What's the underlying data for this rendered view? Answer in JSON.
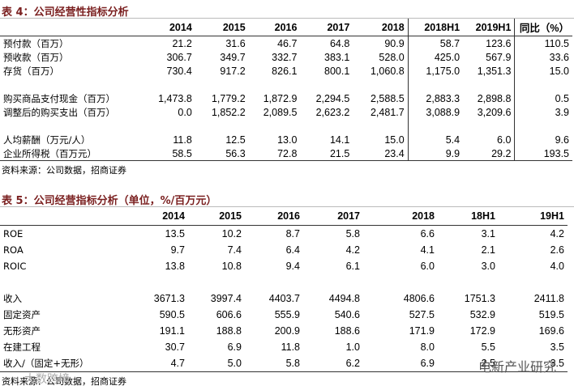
{
  "table4": {
    "title": "表 4：公司经营性指标分析",
    "columns": [
      "2014",
      "2015",
      "2016",
      "2017",
      "2018",
      "2018H1",
      "2019H1",
      "同比（%）"
    ],
    "groups": [
      [
        {
          "label": "预付款（百万）",
          "values": [
            "21.2",
            "31.6",
            "46.7",
            "64.8",
            "90.9",
            "58.7",
            "123.6",
            "110.5"
          ]
        },
        {
          "label": "预收款（百万）",
          "values": [
            "306.7",
            "349.7",
            "332.7",
            "383.1",
            "528.0",
            "425.0",
            "567.9",
            "33.6"
          ]
        },
        {
          "label": "存货（百万）",
          "values": [
            "730.4",
            "917.2",
            "826.1",
            "800.1",
            "1,060.8",
            "1,175.0",
            "1,351.3",
            "15.0"
          ]
        }
      ],
      [
        {
          "label": "购买商品支付现金（百万）",
          "values": [
            "1,473.8",
            "1,779.2",
            "1,872.9",
            "2,294.5",
            "2,588.5",
            "2,883.3",
            "2,898.8",
            "0.5"
          ]
        },
        {
          "label": "调整后的购买支出（百万）",
          "values": [
            "0.0",
            "1,852.2",
            "2,089.5",
            "2,623.2",
            "2,481.7",
            "3,088.9",
            "3,209.6",
            "3.9"
          ]
        }
      ],
      [
        {
          "label": "人均薪酬（万元/人）",
          "values": [
            "11.8",
            "12.5",
            "13.0",
            "14.1",
            "15.0",
            "5.4",
            "6.0",
            "9.6"
          ]
        },
        {
          "label": "企业所得税（百万元）",
          "values": [
            "58.5",
            "56.3",
            "72.8",
            "21.5",
            "23.4",
            "9.9",
            "29.2",
            "193.5"
          ]
        }
      ]
    ],
    "source": "资料来源：公司数据，招商证券"
  },
  "table5": {
    "title": "表 5：公司经营指标分析（单位，%/百万元）",
    "columns": [
      "2014",
      "2015",
      "2016",
      "2017",
      "2018",
      "18H1",
      "19H1"
    ],
    "groups": [
      [
        {
          "label": "ROE",
          "values": [
            "13.5",
            "10.2",
            "8.7",
            "5.8",
            "6.6",
            "3.1",
            "4.2"
          ]
        },
        {
          "label": "ROA",
          "values": [
            "9.7",
            "7.4",
            "6.4",
            "4.2",
            "4.1",
            "2.1",
            "2.6"
          ]
        },
        {
          "label": "ROIC",
          "values": [
            "13.8",
            "10.8",
            "9.4",
            "6.1",
            "6.0",
            "3.0",
            "4.0"
          ]
        }
      ],
      [
        {
          "label": "收入",
          "values": [
            "3671.3",
            "3997.4",
            "4403.7",
            "4494.8",
            "4806.6",
            "1751.3",
            "2411.8"
          ]
        },
        {
          "label": "固定资产",
          "values": [
            "590.5",
            "606.6",
            "555.9",
            "540.6",
            "527.5",
            "532.9",
            "519.5"
          ]
        },
        {
          "label": "无形资产",
          "values": [
            "191.1",
            "188.8",
            "200.9",
            "188.6",
            "171.9",
            "172.9",
            "169.6"
          ]
        },
        {
          "label": "在建工程",
          "values": [
            "30.7",
            "6.9",
            "11.8",
            "1.0",
            "8.0",
            "5.5",
            "3.5"
          ]
        },
        {
          "label": "收入/（固定+无形）",
          "values": [
            "4.7",
            "5.0",
            "5.8",
            "6.2",
            "6.9",
            "2.5",
            "3.5"
          ]
        }
      ]
    ],
    "source": "资料来源：公司数据，招商证券"
  },
  "watermarks": {
    "right": "电新产业研究",
    "left": "大数跨境"
  }
}
